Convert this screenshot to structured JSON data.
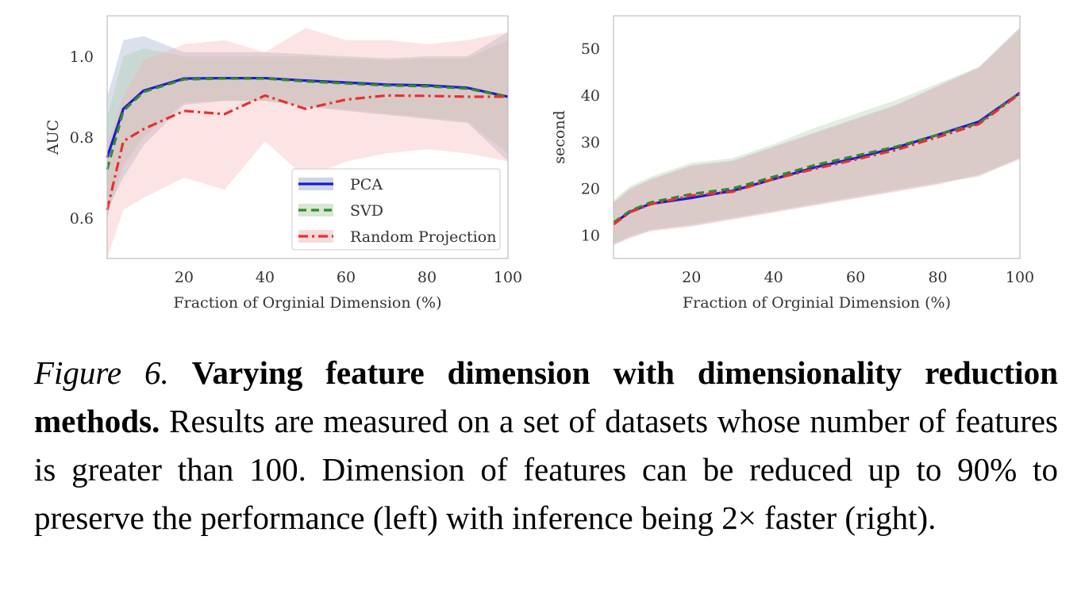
{
  "chart_data": [
    {
      "type": "line",
      "title": "",
      "xlabel": "Fraction of Orginial Dimension (%)",
      "ylabel": "AUC",
      "xlim": [
        1,
        100
      ],
      "ylim": [
        0.5,
        1.1
      ],
      "xticks": [
        20,
        40,
        60,
        80,
        100
      ],
      "yticks": [
        0.6,
        0.8,
        1.0
      ],
      "ytick_labels": [
        "0.6",
        "0.8",
        "1.0"
      ],
      "grid": false,
      "legend_position": "bottom-right",
      "x": [
        1,
        5,
        10,
        20,
        30,
        40,
        50,
        60,
        70,
        80,
        90,
        100
      ],
      "series": [
        {
          "name": "PCA",
          "color": "#1a1ad6",
          "style": "solid",
          "values": [
            0.75,
            0.87,
            0.915,
            0.945,
            0.946,
            0.946,
            0.94,
            0.935,
            0.93,
            0.928,
            0.922,
            0.9
          ],
          "upper": [
            0.9,
            1.04,
            1.05,
            1.01,
            1.01,
            1.01,
            1.005,
            1.0,
            0.995,
            1.0,
            1.0,
            1.06
          ],
          "lower": [
            0.62,
            0.7,
            0.78,
            0.88,
            0.89,
            0.89,
            0.875,
            0.865,
            0.855,
            0.845,
            0.835,
            0.74
          ],
          "band_color": "#8fa3c4"
        },
        {
          "name": "SVD",
          "color": "#2e8b2e",
          "style": "dashed",
          "values": [
            0.72,
            0.865,
            0.912,
            0.943,
            0.945,
            0.945,
            0.938,
            0.933,
            0.928,
            0.926,
            0.92,
            0.9
          ],
          "upper": [
            0.85,
            1.0,
            1.02,
            1.0,
            1.0,
            1.0,
            1.0,
            0.995,
            0.99,
            0.995,
            0.995,
            1.04
          ],
          "lower": [
            0.6,
            0.73,
            0.8,
            0.885,
            0.89,
            0.89,
            0.878,
            0.868,
            0.858,
            0.848,
            0.838,
            0.76
          ],
          "band_color": "#a9c8a0"
        },
        {
          "name": "Random Projection",
          "color": "#e83030",
          "style": "dashdot",
          "values": [
            0.62,
            0.79,
            0.82,
            0.865,
            0.857,
            0.903,
            0.87,
            0.893,
            0.903,
            0.902,
            0.9,
            0.9
          ],
          "upper": [
            0.78,
            0.9,
            0.99,
            1.03,
            1.04,
            1.01,
            1.07,
            1.04,
            1.04,
            1.03,
            1.04,
            1.06
          ],
          "lower": [
            0.5,
            0.62,
            0.65,
            0.7,
            0.67,
            0.79,
            0.7,
            0.74,
            0.76,
            0.77,
            0.76,
            0.74
          ],
          "band_color": "#f5aaaa"
        }
      ]
    },
    {
      "type": "line",
      "title": "",
      "xlabel": "Fraction of Orginial Dimension (%)",
      "ylabel": "second",
      "xlim": [
        1,
        100
      ],
      "ylim": [
        5,
        57
      ],
      "xticks": [
        20,
        40,
        60,
        80,
        100
      ],
      "yticks": [
        10,
        20,
        30,
        40,
        50
      ],
      "grid": false,
      "x": [
        1,
        5,
        10,
        20,
        30,
        40,
        50,
        60,
        70,
        80,
        90,
        100
      ],
      "series": [
        {
          "color": "#1a1ad6",
          "style": "solid",
          "values": [
            12.5,
            15,
            16.7,
            18,
            19.5,
            22,
            24.5,
            26.5,
            28.8,
            31.5,
            34.3,
            40.5
          ],
          "upper": [
            17,
            20,
            22,
            25,
            26,
            29,
            32,
            35,
            38,
            42,
            46,
            54.5
          ],
          "lower": [
            8,
            9.5,
            11,
            12,
            13.5,
            15,
            16.5,
            18,
            19.5,
            21,
            23,
            26.5
          ],
          "band_color": "#9aa8d0"
        },
        {
          "color": "#2e8b2e",
          "style": "dashed",
          "values": [
            12.7,
            15.2,
            17,
            18.8,
            20,
            22.5,
            25,
            27,
            29,
            31.5,
            34,
            40.5
          ],
          "upper": [
            17.5,
            20.5,
            22.5,
            25.5,
            26.5,
            29.5,
            33,
            36,
            39,
            42.5,
            46,
            54.5
          ],
          "lower": [
            8.2,
            9.8,
            11.2,
            12.3,
            13.8,
            15.2,
            16.8,
            18.3,
            19.8,
            21.3,
            22.5,
            26.5
          ],
          "band_color": "#a9c8a0"
        },
        {
          "color": "#e83030",
          "style": "dashdot",
          "values": [
            12.3,
            14.9,
            16.6,
            18.5,
            19.3,
            22,
            24.2,
            26.2,
            28.3,
            31,
            33.8,
            40.3
          ],
          "upper": [
            16.8,
            19.8,
            21.8,
            24.8,
            25.8,
            28.8,
            31.8,
            34.8,
            37.8,
            41.8,
            45.8,
            54
          ],
          "lower": [
            7.8,
            9.3,
            10.8,
            11.8,
            13.3,
            14.8,
            16.3,
            17.8,
            19.3,
            20.8,
            22.8,
            26.2
          ],
          "band_color": "#f5aaaa"
        }
      ]
    }
  ],
  "caption": {
    "label": "Figure 6.",
    "bold_title": "Varying feature dimension with dimensionality reduction methods.",
    "body": "Results are measured on a set of datasets whose number of features is greater than 100.  Dimension of features can be reduced up to 90% to preserve the performance (left) with inference being 2× faster (right)."
  }
}
